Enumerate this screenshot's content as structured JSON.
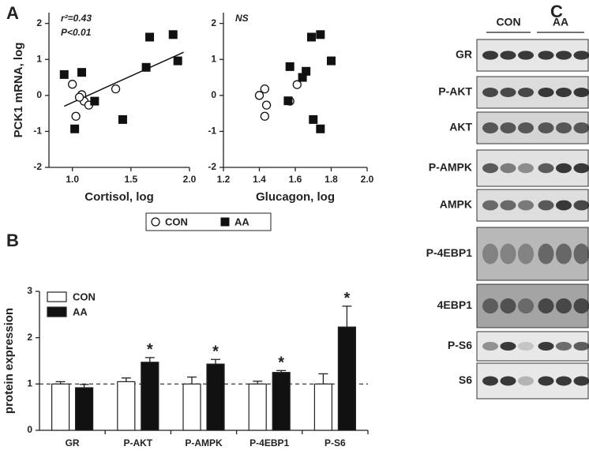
{
  "chart_data": [
    {
      "type": "scatter",
      "xlabel": "Cortisol, log",
      "ylabel": "PCK1 mRNA, log",
      "xlim": [
        0.8,
        2.0
      ],
      "ylim": [
        -2,
        2.3
      ],
      "xticks": [
        {
          "value": 1,
          "label": "1.0"
        },
        {
          "value": 1.5,
          "label": "1.5"
        },
        {
          "value": 2,
          "label": "2.0"
        }
      ],
      "yticks": [
        -2,
        -1,
        0,
        1,
        2
      ],
      "annotations": [
        "r²=0.43",
        "P<0.01"
      ],
      "legend": true,
      "series": [
        {
          "name": "CON",
          "marker": "circle",
          "color": "#ffffff",
          "x": [
            1.0,
            1.03,
            1.08,
            1.1,
            1.14,
            1.37,
            1.06
          ],
          "values": [
            0.31,
            -0.58,
            0.02,
            -0.16,
            -0.27,
            0.18,
            -0.05
          ]
        },
        {
          "name": "AA",
          "marker": "square",
          "color": "#111111",
          "x": [
            0.93,
            1.08,
            1.02,
            1.19,
            1.43,
            1.63,
            1.66,
            1.86,
            1.9
          ],
          "values": [
            0.58,
            0.64,
            -0.93,
            -0.16,
            -0.67,
            0.78,
            1.62,
            1.69,
            0.96
          ]
        }
      ],
      "fit": {
        "x": [
          0.93,
          1.95
        ],
        "values": [
          -0.3,
          1.2
        ]
      }
    },
    {
      "type": "scatter",
      "xlabel": "Glucagon, log",
      "xlim": [
        1.2,
        2.0
      ],
      "ylim": [
        -2,
        2.3
      ],
      "xticks": [
        {
          "value": 1.2,
          "label": "1.2"
        },
        {
          "value": 1.4,
          "label": "1.4"
        },
        {
          "value": 1.6,
          "label": "1.6"
        },
        {
          "value": 1.8,
          "label": "1.8"
        },
        {
          "value": 2,
          "label": "2.0"
        }
      ],
      "yticks": [
        -2,
        -1,
        0,
        1,
        2
      ],
      "annotations": [
        "NS"
      ],
      "legend": false,
      "series": [
        {
          "name": "CON",
          "marker": "circle",
          "color": "#ffffff",
          "x": [
            1.4,
            1.43,
            1.44,
            1.43,
            1.61,
            1.57
          ],
          "values": [
            0.0,
            0.18,
            -0.27,
            -0.58,
            0.3,
            -0.16
          ]
        },
        {
          "name": "AA",
          "marker": "square",
          "color": "#111111",
          "x": [
            1.57,
            1.56,
            1.66,
            1.69,
            1.74,
            1.8,
            1.7,
            1.74,
            1.64
          ],
          "values": [
            0.8,
            -0.15,
            0.67,
            1.62,
            1.69,
            0.96,
            -0.67,
            -0.93,
            0.5
          ]
        }
      ]
    },
    {
      "type": "bar",
      "ylabel": "protein expression",
      "categories": [
        "GR",
        "P-AKT",
        "P-AMPK",
        "P-4EBP1",
        "P-S6"
      ],
      "ylim": [
        0,
        3
      ],
      "yticks": [
        0,
        1,
        2,
        3
      ],
      "reference_line": 1,
      "legend": "upper left",
      "series": [
        {
          "name": "CON",
          "color": "#ffffff",
          "values": [
            1.0,
            1.05,
            1.0,
            1.0,
            1.0
          ],
          "errors": [
            0.05,
            0.08,
            0.15,
            0.06,
            0.22
          ]
        },
        {
          "name": "AA",
          "color": "#111111",
          "values": [
            0.92,
            1.47,
            1.43,
            1.25,
            2.23
          ],
          "errors": [
            0.07,
            0.1,
            0.1,
            0.04,
            0.45
          ],
          "significance": [
            null,
            "*",
            "*",
            "*",
            "*"
          ]
        }
      ]
    }
  ],
  "panel_labels": [
    "A",
    "B",
    "C"
  ],
  "blot": {
    "groups": [
      "CON",
      "AA"
    ],
    "rows": [
      "GR",
      "P-AKT",
      "AKT",
      "P-AMPK",
      "AMPK",
      "P-4EBP1",
      "4EBP1",
      "P-S6",
      "S6"
    ]
  }
}
